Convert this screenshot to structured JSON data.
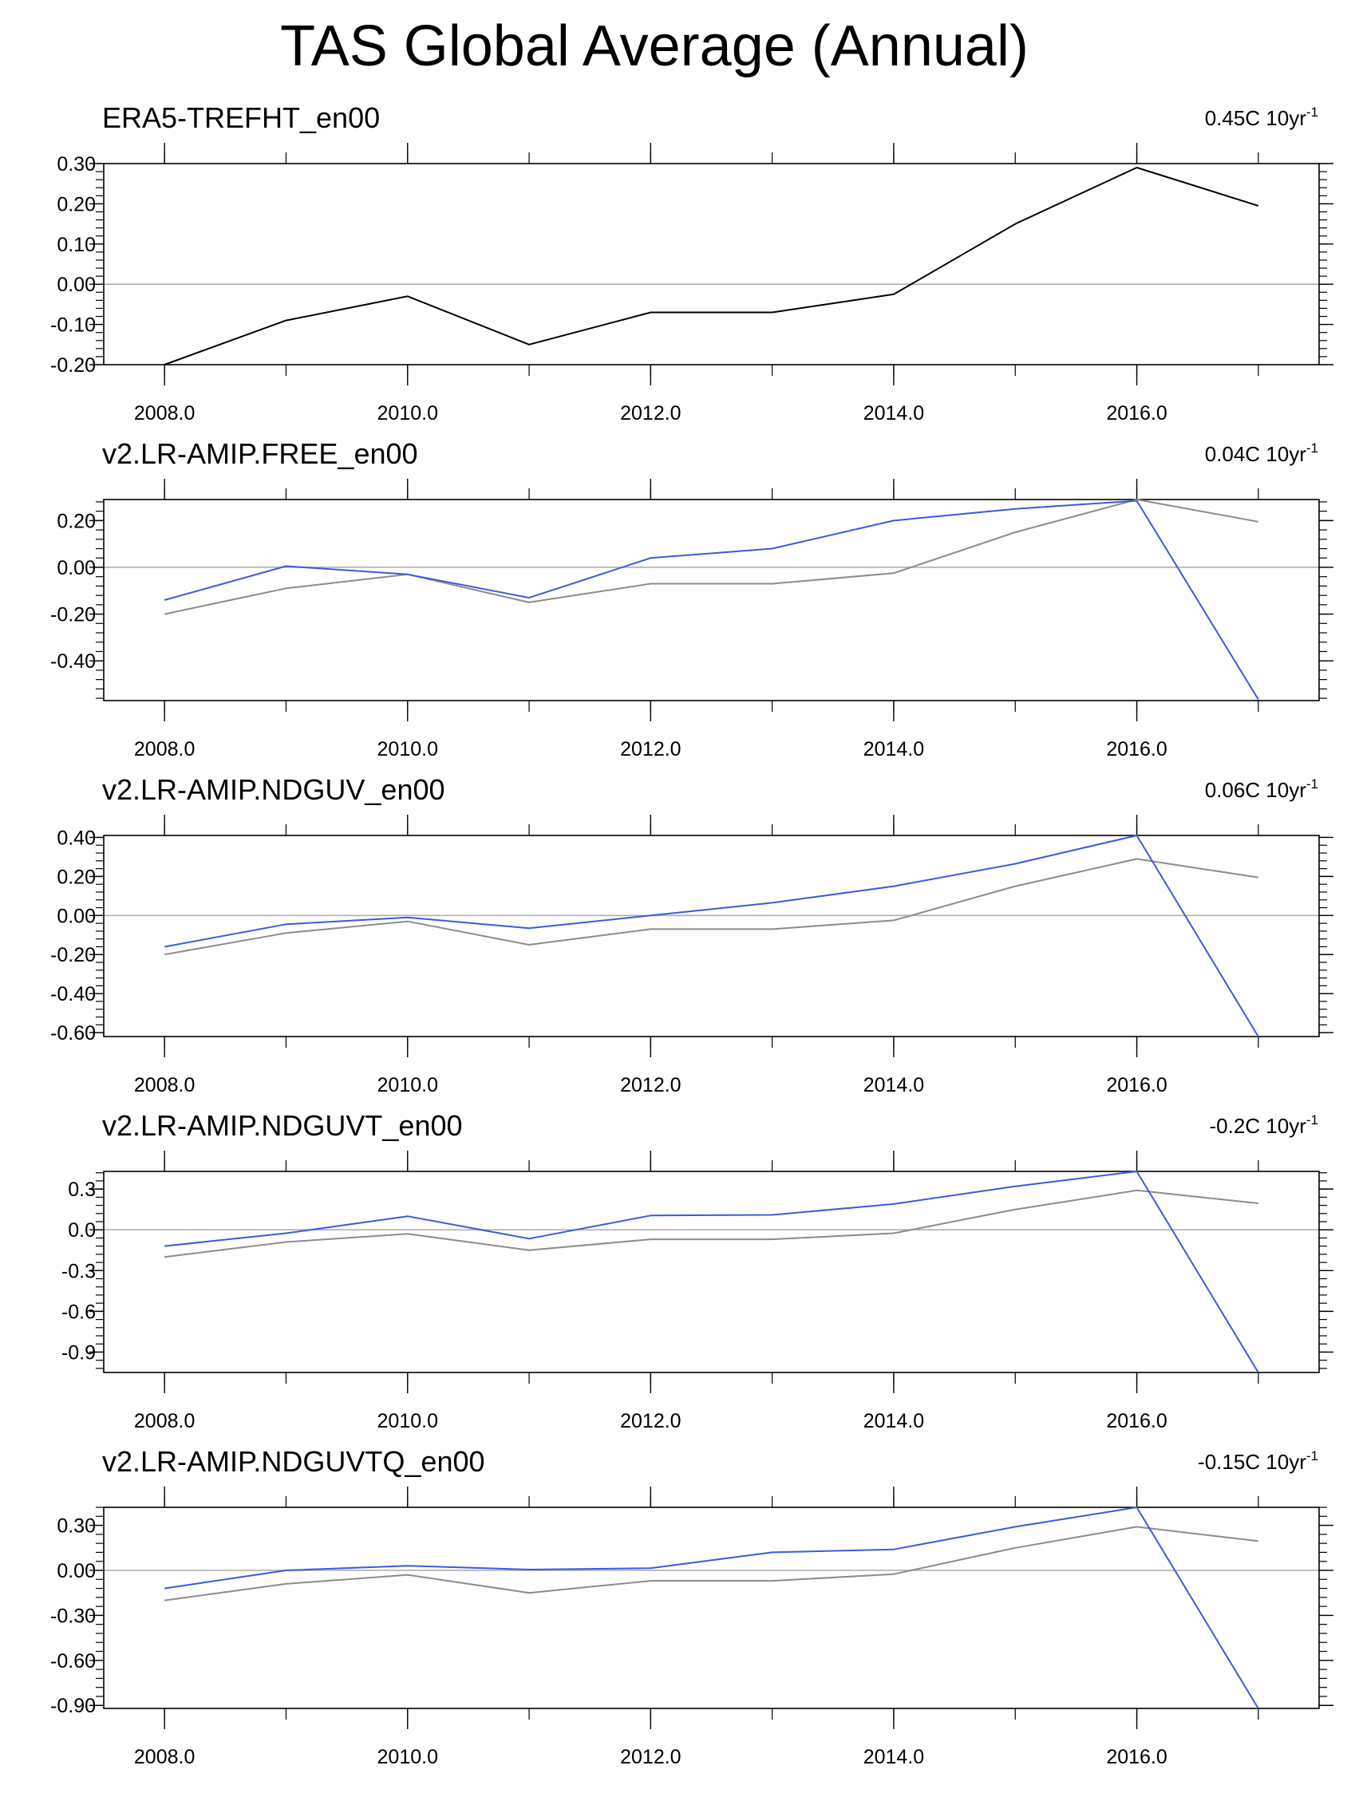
{
  "figure": {
    "title": "TAS Global Average (Annual)"
  },
  "colors": {
    "reference": "#000000",
    "reference_overlay": "#8c8c8c",
    "model": "#3b5bd9",
    "zero_line": "#b0b0b0",
    "axis": "#000000"
  },
  "chart_data": [
    {
      "type": "line",
      "title": "ERA5-TREFHT_en00",
      "trend_value": "0.45C 10yr",
      "trend_exp": "-1",
      "x": [
        2008,
        2009,
        2010,
        2011,
        2012,
        2013,
        2014,
        2015,
        2016,
        2017
      ],
      "xlim": [
        2007.5,
        2017.5
      ],
      "xticks": [
        2008,
        2010,
        2012,
        2014,
        2016
      ],
      "xtick_labels": [
        "2008.0",
        "2010.0",
        "2012.0",
        "2014.0",
        "2016.0"
      ],
      "ylim": [
        -0.2,
        0.3
      ],
      "yticks": [
        0.3,
        0.2,
        0.1,
        0.0,
        -0.1,
        -0.2
      ],
      "ytick_labels": [
        "0.30",
        "0.20",
        "0.10",
        "0.00",
        "-0.10",
        "-0.20"
      ],
      "series": [
        {
          "name": "ERA5-TREFHT_en00",
          "role": "reference",
          "values": [
            -0.2,
            -0.09,
            -0.03,
            -0.15,
            -0.07,
            -0.07,
            -0.025,
            0.15,
            0.29,
            0.195
          ]
        }
      ]
    },
    {
      "type": "line",
      "title": "v2.LR-AMIP.FREE_en00",
      "trend_value": "0.04C 10yr",
      "trend_exp": "-1",
      "x": [
        2008,
        2009,
        2010,
        2011,
        2012,
        2013,
        2014,
        2015,
        2016,
        2017
      ],
      "xlim": [
        2007.5,
        2017.5
      ],
      "xticks": [
        2008,
        2010,
        2012,
        2014,
        2016
      ],
      "xtick_labels": [
        "2008.0",
        "2010.0",
        "2012.0",
        "2014.0",
        "2016.0"
      ],
      "ylim": [
        -0.57,
        0.29
      ],
      "yticks": [
        0.2,
        0.0,
        -0.2,
        -0.4
      ],
      "ytick_labels": [
        "0.20",
        "0.00",
        "-0.20",
        "-0.40"
      ],
      "series": [
        {
          "name": "ERA5-TREFHT_en00",
          "role": "reference_overlay",
          "values": [
            -0.2,
            -0.09,
            -0.03,
            -0.15,
            -0.07,
            -0.07,
            -0.025,
            0.15,
            0.29,
            0.195
          ]
        },
        {
          "name": "v2.LR-AMIP.FREE_en00",
          "role": "model",
          "values": [
            -0.14,
            0.005,
            -0.03,
            -0.13,
            0.04,
            0.08,
            0.2,
            0.25,
            0.285,
            -0.565
          ]
        }
      ]
    },
    {
      "type": "line",
      "title": "v2.LR-AMIP.NDGUV_en00",
      "trend_value": "0.06C 10yr",
      "trend_exp": "-1",
      "x": [
        2008,
        2009,
        2010,
        2011,
        2012,
        2013,
        2014,
        2015,
        2016,
        2017
      ],
      "xlim": [
        2007.5,
        2017.5
      ],
      "xticks": [
        2008,
        2010,
        2012,
        2014,
        2016
      ],
      "xtick_labels": [
        "2008.0",
        "2010.0",
        "2012.0",
        "2014.0",
        "2016.0"
      ],
      "ylim": [
        -0.62,
        0.41
      ],
      "yticks": [
        0.4,
        0.2,
        0.0,
        -0.2,
        -0.4,
        -0.6
      ],
      "ytick_labels": [
        "0.40",
        "0.20",
        "0.00",
        "-0.20",
        "-0.40",
        "-0.60"
      ],
      "series": [
        {
          "name": "ERA5-TREFHT_en00",
          "role": "reference_overlay",
          "values": [
            -0.2,
            -0.09,
            -0.03,
            -0.15,
            -0.07,
            -0.07,
            -0.025,
            0.15,
            0.29,
            0.195
          ]
        },
        {
          "name": "v2.LR-AMIP.NDGUV_en00",
          "role": "model",
          "values": [
            -0.16,
            -0.045,
            -0.01,
            -0.065,
            0.0,
            0.065,
            0.15,
            0.265,
            0.41,
            -0.62
          ]
        }
      ]
    },
    {
      "type": "line",
      "title": "v2.LR-AMIP.NDGUVT_en00",
      "trend_value": "-0.2C 10yr",
      "trend_exp": "-1",
      "x": [
        2008,
        2009,
        2010,
        2011,
        2012,
        2013,
        2014,
        2015,
        2016,
        2017
      ],
      "xlim": [
        2007.5,
        2017.5
      ],
      "xticks": [
        2008,
        2010,
        2012,
        2014,
        2016
      ],
      "xtick_labels": [
        "2008.0",
        "2010.0",
        "2012.0",
        "2014.0",
        "2016.0"
      ],
      "ylim": [
        -1.05,
        0.43
      ],
      "yticks": [
        0.3,
        0.0,
        -0.3,
        -0.6,
        -0.9
      ],
      "ytick_labels": [
        "0.3",
        "0.0",
        "-0.3",
        "-0.6",
        "-0.9"
      ],
      "series": [
        {
          "name": "ERA5-TREFHT_en00",
          "role": "reference_overlay",
          "values": [
            -0.2,
            -0.09,
            -0.03,
            -0.15,
            -0.07,
            -0.07,
            -0.025,
            0.15,
            0.29,
            0.195
          ]
        },
        {
          "name": "v2.LR-AMIP.NDGUVT_en00",
          "role": "model",
          "values": [
            -0.12,
            -0.025,
            0.1,
            -0.065,
            0.105,
            0.11,
            0.19,
            0.32,
            0.43,
            -1.05
          ]
        }
      ]
    },
    {
      "type": "line",
      "title": "v2.LR-AMIP.NDGUVTQ_en00",
      "trend_value": "-0.15C 10yr",
      "trend_exp": "-1",
      "x": [
        2008,
        2009,
        2010,
        2011,
        2012,
        2013,
        2014,
        2015,
        2016,
        2017
      ],
      "xlim": [
        2007.5,
        2017.5
      ],
      "xticks": [
        2008,
        2010,
        2012,
        2014,
        2016
      ],
      "xtick_labels": [
        "2008.0",
        "2010.0",
        "2012.0",
        "2014.0",
        "2016.0"
      ],
      "ylim": [
        -0.92,
        0.42
      ],
      "yticks": [
        0.3,
        0.0,
        -0.3,
        -0.6,
        -0.9
      ],
      "ytick_labels": [
        "0.30",
        "0.00",
        "-0.30",
        "-0.60",
        "-0.90"
      ],
      "series": [
        {
          "name": "ERA5-TREFHT_en00",
          "role": "reference_overlay",
          "values": [
            -0.2,
            -0.09,
            -0.03,
            -0.15,
            -0.07,
            -0.07,
            -0.025,
            0.15,
            0.29,
            0.195
          ]
        },
        {
          "name": "v2.LR-AMIP.NDGUVTQ_en00",
          "role": "model",
          "values": [
            -0.12,
            0.0,
            0.03,
            0.005,
            0.015,
            0.12,
            0.14,
            0.29,
            0.42,
            -0.92
          ]
        }
      ]
    }
  ]
}
